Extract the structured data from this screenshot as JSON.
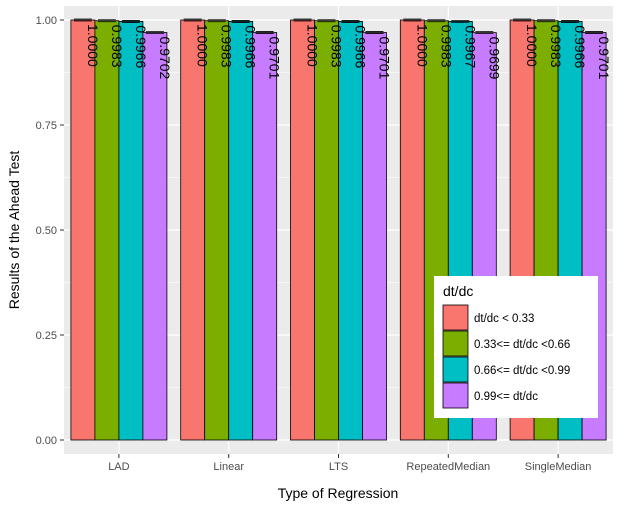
{
  "chart_data": {
    "type": "bar",
    "xlabel": "Type of Regression",
    "ylabel": "Results of the Ahead Test",
    "ylim": [
      0,
      1.0
    ],
    "yticks": [
      "0.00",
      "0.25",
      "0.50",
      "0.75",
      "1.00"
    ],
    "categories": [
      "LAD",
      "Linear",
      "LTS",
      "RepeatedMedian",
      "SingleMedian"
    ],
    "series": [
      {
        "name": "dt/dc < 0.33",
        "color": "#F8766D",
        "values": [
          1.0,
          1.0,
          1.0,
          1.0,
          1.0
        ],
        "labels": [
          "1.0000",
          "1.0000",
          "1.0000",
          "1.0000",
          "1.0000"
        ]
      },
      {
        "name": "0.33<= dt/dc <0.66",
        "color": "#7CAE00",
        "values": [
          0.9983,
          0.9983,
          0.9983,
          0.9983,
          0.9983
        ],
        "labels": [
          "0.9983",
          "0.9983",
          "0.9983",
          "0.9983",
          "0.9983"
        ]
      },
      {
        "name": "0.66<= dt/dc <0.99",
        "color": "#00BFC4",
        "values": [
          0.9966,
          0.9966,
          0.9966,
          0.9967,
          0.9966
        ],
        "labels": [
          "0.9966",
          "0.9966",
          "0.9966",
          "0.9967",
          "0.9966"
        ]
      },
      {
        "name": "0.99<= dt/dc",
        "color": "#C77CFF",
        "values": [
          0.9702,
          0.9701,
          0.9701,
          0.9699,
          0.9701
        ],
        "labels": [
          "0.9702",
          "0.9701",
          "0.9701",
          "0.9699",
          "0.9701"
        ]
      }
    ],
    "legend": {
      "title": "dt/dc",
      "position": "bottom-right inside"
    },
    "grid": true,
    "panel_background": "#EBEBEB",
    "grid_color": "#FFFFFF"
  }
}
